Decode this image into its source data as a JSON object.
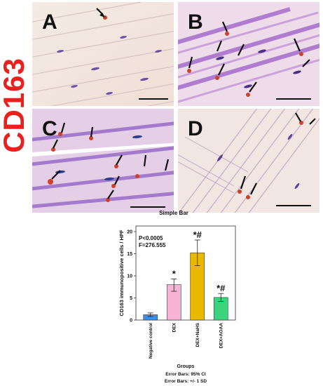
{
  "figure": {
    "marker_label": "CD163",
    "panels": [
      {
        "id": "A",
        "label": "A"
      },
      {
        "id": "B",
        "label": "B"
      },
      {
        "id": "C",
        "label": "C"
      },
      {
        "id": "D",
        "label": "D"
      }
    ]
  },
  "chart_data": {
    "type": "bar",
    "title": "Simple Bar",
    "ylabel": "CD163 immunopositive cells / HPF",
    "xlabel": "Groups",
    "categories": [
      "Negative control",
      "DEX",
      "DEX+NaHS",
      "DEX+AOAA"
    ],
    "values": [
      1.2,
      8.0,
      15.2,
      5.1
    ],
    "error_low": [
      0.8,
      6.5,
      12.3,
      4.2
    ],
    "error_high": [
      1.6,
      9.3,
      18.1,
      6.0
    ],
    "bar_colors": [
      "#3c8fe6",
      "#f6b3d6",
      "#e8b900",
      "#3bd47d"
    ],
    "annotations": [
      "",
      "*",
      "*#",
      "*#"
    ],
    "ylim": [
      0,
      20
    ],
    "yticks": [
      0,
      5,
      10,
      15,
      20
    ],
    "stats": [
      "P<0.0005",
      "F=276.555"
    ],
    "footnotes": [
      "Error Bars: 95% CI",
      "Error Bars: +/- 1 SD"
    ]
  }
}
